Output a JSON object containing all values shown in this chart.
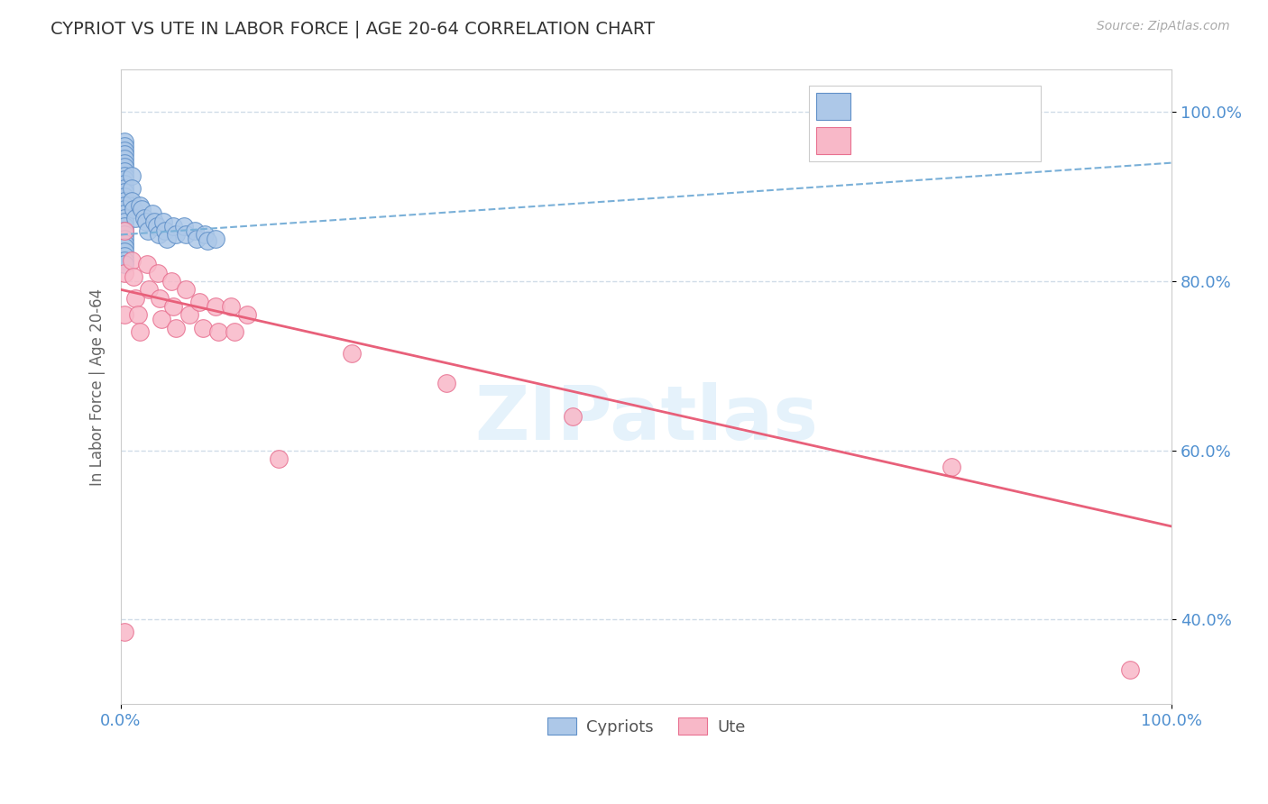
{
  "title": "CYPRIOT VS UTE IN LABOR FORCE | AGE 20-64 CORRELATION CHART",
  "source_text": "Source: ZipAtlas.com",
  "ylabel": "In Labor Force | Age 20-64",
  "xlim": [
    0.0,
    1.0
  ],
  "ylim": [
    0.3,
    1.05
  ],
  "yticks": [
    0.4,
    0.6,
    0.8,
    1.0
  ],
  "ytick_labels": [
    "40.0%",
    "60.0%",
    "80.0%",
    "100.0%"
  ],
  "xticks": [
    0.0,
    1.0
  ],
  "xtick_labels": [
    "0.0%",
    "100.0%"
  ],
  "blue_fill": "#adc8e8",
  "blue_edge": "#6090c8",
  "pink_fill": "#f8b8c8",
  "pink_edge": "#e87090",
  "blue_trendline": "#7ab0d8",
  "pink_trendline": "#e8607a",
  "grid_color": "#d0dce8",
  "background_color": "#ffffff",
  "tick_color": "#5090d0",
  "watermark": "ZIPatlas",
  "legend_label_cypriot": "Cypriots",
  "legend_label_ute": "Ute",
  "cypriot_x": [
    0.003,
    0.003,
    0.003,
    0.003,
    0.003,
    0.003,
    0.003,
    0.003,
    0.003,
    0.003,
    0.003,
    0.003,
    0.003,
    0.003,
    0.003,
    0.003,
    0.003,
    0.003,
    0.003,
    0.003,
    0.003,
    0.003,
    0.003,
    0.003,
    0.003,
    0.003,
    0.003,
    0.003,
    0.003,
    0.003,
    0.01,
    0.01,
    0.01,
    0.012,
    0.014,
    0.018,
    0.02,
    0.022,
    0.024,
    0.026,
    0.03,
    0.032,
    0.034,
    0.036,
    0.04,
    0.042,
    0.044,
    0.05,
    0.052,
    0.06,
    0.062,
    0.07,
    0.072,
    0.08,
    0.082,
    0.09
  ],
  "cypriot_y": [
    0.965,
    0.96,
    0.955,
    0.95,
    0.945,
    0.94,
    0.935,
    0.93,
    0.925,
    0.92,
    0.915,
    0.91,
    0.905,
    0.9,
    0.895,
    0.89,
    0.885,
    0.88,
    0.875,
    0.87,
    0.865,
    0.86,
    0.855,
    0.85,
    0.845,
    0.84,
    0.835,
    0.83,
    0.825,
    0.82,
    0.925,
    0.91,
    0.895,
    0.885,
    0.875,
    0.89,
    0.885,
    0.875,
    0.87,
    0.86,
    0.88,
    0.87,
    0.865,
    0.855,
    0.87,
    0.86,
    0.85,
    0.865,
    0.855,
    0.865,
    0.855,
    0.86,
    0.85,
    0.855,
    0.848,
    0.85
  ],
  "ute_x": [
    0.003,
    0.003,
    0.003,
    0.003,
    0.01,
    0.012,
    0.014,
    0.016,
    0.018,
    0.025,
    0.027,
    0.035,
    0.037,
    0.039,
    0.048,
    0.05,
    0.052,
    0.062,
    0.065,
    0.075,
    0.078,
    0.09,
    0.093,
    0.105,
    0.108,
    0.12,
    0.15,
    0.22,
    0.31,
    0.43,
    0.79,
    0.96
  ],
  "ute_y": [
    0.86,
    0.81,
    0.76,
    0.385,
    0.825,
    0.805,
    0.78,
    0.76,
    0.74,
    0.82,
    0.79,
    0.81,
    0.78,
    0.755,
    0.8,
    0.77,
    0.745,
    0.79,
    0.76,
    0.775,
    0.745,
    0.77,
    0.74,
    0.77,
    0.74,
    0.76,
    0.59,
    0.715,
    0.68,
    0.64,
    0.58,
    0.34
  ]
}
